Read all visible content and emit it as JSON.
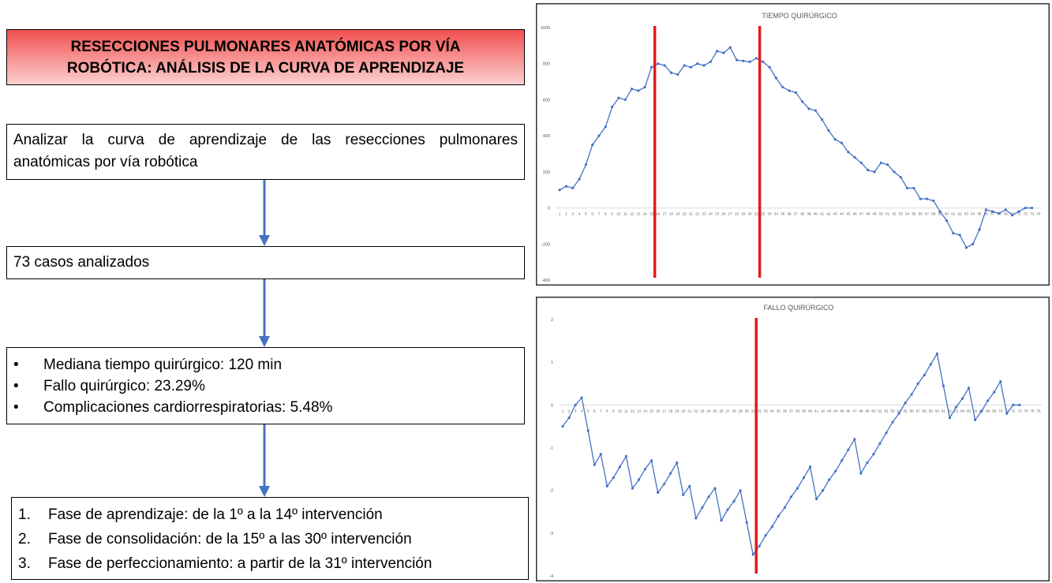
{
  "title": "RESECCIONES PULMONARES ANATÓMICAS POR VÍA ROBÓTICA: ANÁLISIS DE LA CURVA DE APRENDIZAJE",
  "objective": "Analizar la curva de aprendizaje de las resecciones pulmonares anatómicas por vía robótica",
  "cases": "73 casos analizados",
  "results": [
    "Mediana tiempo quirúrgico: 120 min",
    "Fallo quirúrgico: 23.29%",
    "Complicaciones cardiorrespiratorias: 5.48%"
  ],
  "phases": [
    {
      "number": "1.",
      "text": "Fase de aprendizaje: de la 1º a la 14º intervención"
    },
    {
      "number": "2.",
      "text": "Fase de consolidación: de la 15º a las 30º intervención"
    },
    {
      "number": "3.",
      "text": "Fase de perfeccionamiento: a partir de la 31º intervención"
    }
  ],
  "chart_data": [
    {
      "type": "line",
      "title": "TIEMPO QUIRÚRGICO",
      "color": "#4472c4",
      "line_color": "#e31a1c",
      "categories": [
        "1",
        "2",
        "3",
        "4",
        "5",
        "6",
        "7",
        "8",
        "9",
        "10",
        "11",
        "12",
        "13",
        "14",
        "15",
        "16",
        "17",
        "18",
        "19",
        "20",
        "21",
        "22",
        "23",
        "24",
        "25",
        "26",
        "27",
        "28",
        "29",
        "30",
        "31",
        "32",
        "33",
        "34",
        "35",
        "36",
        "37",
        "38",
        "39",
        "40",
        "41",
        "42",
        "43",
        "44",
        "45",
        "46",
        "47",
        "48",
        "49",
        "50",
        "51",
        "52",
        "53",
        "54",
        "55",
        "56",
        "57",
        "58",
        "59",
        "60",
        "61",
        "62",
        "63",
        "64",
        "65",
        "66",
        "67",
        "68",
        "69",
        "70",
        "71",
        "72",
        "73",
        "74"
      ],
      "values": [
        100,
        120,
        110,
        160,
        240,
        350,
        400,
        450,
        560,
        610,
        600,
        660,
        650,
        670,
        780,
        800,
        790,
        750,
        740,
        790,
        780,
        800,
        790,
        810,
        870,
        860,
        890,
        820,
        815,
        810,
        830,
        810,
        780,
        720,
        670,
        650,
        640,
        590,
        550,
        540,
        490,
        430,
        380,
        360,
        310,
        280,
        250,
        210,
        200,
        250,
        240,
        200,
        170,
        110,
        110,
        50,
        50,
        40,
        -20,
        -70,
        -140,
        -150,
        -220,
        -200,
        -120,
        -10,
        -20,
        -30,
        -10,
        -40,
        -20,
        0,
        0,
        null
      ],
      "ylim": [
        -400,
        1000
      ],
      "yticks": [
        -400,
        -200,
        0,
        200,
        400,
        600,
        800,
        1000
      ],
      "grid": false,
      "phase_lines": [
        15,
        31
      ]
    },
    {
      "type": "line",
      "title": "FALLO QUIRÚRGICO",
      "color": "#4472c4",
      "line_color": "#e31a1c",
      "categories": [
        "1",
        "2",
        "3",
        "4",
        "5",
        "6",
        "7",
        "8",
        "9",
        "10",
        "11",
        "12",
        "13",
        "14",
        "15",
        "16",
        "17",
        "18",
        "19",
        "20",
        "21",
        "22",
        "23",
        "24",
        "25",
        "26",
        "27",
        "28",
        "29",
        "30",
        "31",
        "32",
        "33",
        "34",
        "35",
        "36",
        "37",
        "38",
        "39",
        "40",
        "41",
        "42",
        "43",
        "44",
        "45",
        "46",
        "47",
        "48",
        "49",
        "50",
        "51",
        "52",
        "53",
        "54",
        "55",
        "56",
        "57",
        "58",
        "59",
        "60",
        "61",
        "62",
        "63",
        "64",
        "65",
        "66",
        "67",
        "68",
        "69",
        "70",
        "71",
        "72",
        "73",
        "74",
        "75",
        "76"
      ],
      "values": [
        -0.5,
        -0.3,
        0,
        0.17,
        -0.6,
        -1.4,
        -1.15,
        -1.9,
        -1.7,
        -1.45,
        -1.2,
        -1.95,
        -1.75,
        -1.5,
        -1.3,
        -2.05,
        -1.85,
        -1.6,
        -1.35,
        -2.1,
        -1.9,
        -2.65,
        -2.4,
        -2.15,
        -1.95,
        -2.7,
        -2.45,
        -2.25,
        -2.0,
        -2.75,
        -3.5,
        -3.3,
        -3.05,
        -2.85,
        -2.6,
        -2.4,
        -2.15,
        -1.95,
        -1.7,
        -1.45,
        -2.2,
        -2.0,
        -1.75,
        -1.55,
        -1.3,
        -1.05,
        -0.8,
        -1.6,
        -1.35,
        -1.15,
        -0.9,
        -0.65,
        -0.4,
        -0.2,
        0.05,
        0.25,
        0.5,
        0.7,
        0.95,
        1.2,
        0.45,
        -0.3,
        -0.05,
        0.15,
        0.4,
        -0.35,
        -0.15,
        0.1,
        0.3,
        0.55,
        -0.2,
        0,
        0,
        null,
        null,
        null
      ],
      "ylim": [
        -4,
        2
      ],
      "yticks": [
        -4,
        -3,
        -2,
        -1,
        0,
        1,
        2
      ],
      "grid": false,
      "phase_lines": [
        31
      ]
    }
  ]
}
